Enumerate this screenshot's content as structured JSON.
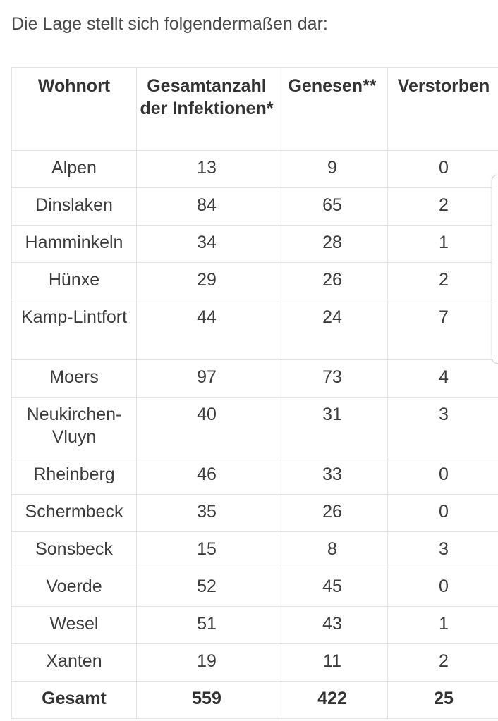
{
  "intro_text": "Die Lage stellt sich folgendermaßen dar:",
  "table": {
    "headers": {
      "wohnort": "Wohnort",
      "infektionen": "Gesamtanzahl der Infektionen*",
      "genesen": "Genesen**",
      "verstorben": "Verstorben"
    },
    "rows": [
      {
        "wohnort": "Alpen",
        "infektionen": "13",
        "genesen": "9",
        "verstorben": "0"
      },
      {
        "wohnort": "Dinslaken",
        "infektionen": "84",
        "genesen": "65",
        "verstorben": "2"
      },
      {
        "wohnort": "Hamminkeln",
        "infektionen": "34",
        "genesen": "28",
        "verstorben": "1"
      },
      {
        "wohnort": "Hünxe",
        "infektionen": "29",
        "genesen": "26",
        "verstorben": "2"
      },
      {
        "wohnort": "Kamp-Lintfort",
        "infektionen": "44",
        "genesen": "24",
        "verstorben": "7"
      },
      {
        "wohnort": "Moers",
        "infektionen": "97",
        "genesen": "73",
        "verstorben": "4"
      },
      {
        "wohnort": "Neukirchen-Vluyn",
        "infektionen": "40",
        "genesen": "31",
        "verstorben": "3"
      },
      {
        "wohnort": "Rheinberg",
        "infektionen": "46",
        "genesen": "33",
        "verstorben": "0"
      },
      {
        "wohnort": "Schermbeck",
        "infektionen": "35",
        "genesen": "26",
        "verstorben": "0"
      },
      {
        "wohnort": "Sonsbeck",
        "infektionen": "15",
        "genesen": "8",
        "verstorben": "3"
      },
      {
        "wohnort": "Voerde",
        "infektionen": "52",
        "genesen": "45",
        "verstorben": "0"
      },
      {
        "wohnort": "Wesel",
        "infektionen": "51",
        "genesen": "43",
        "verstorben": "1"
      },
      {
        "wohnort": "Xanten",
        "infektionen": "19",
        "genesen": "11",
        "verstorben": "2"
      }
    ],
    "total": {
      "wohnort": "Gesamt",
      "infektionen": "559",
      "genesen": "422",
      "verstorben": "25"
    }
  }
}
